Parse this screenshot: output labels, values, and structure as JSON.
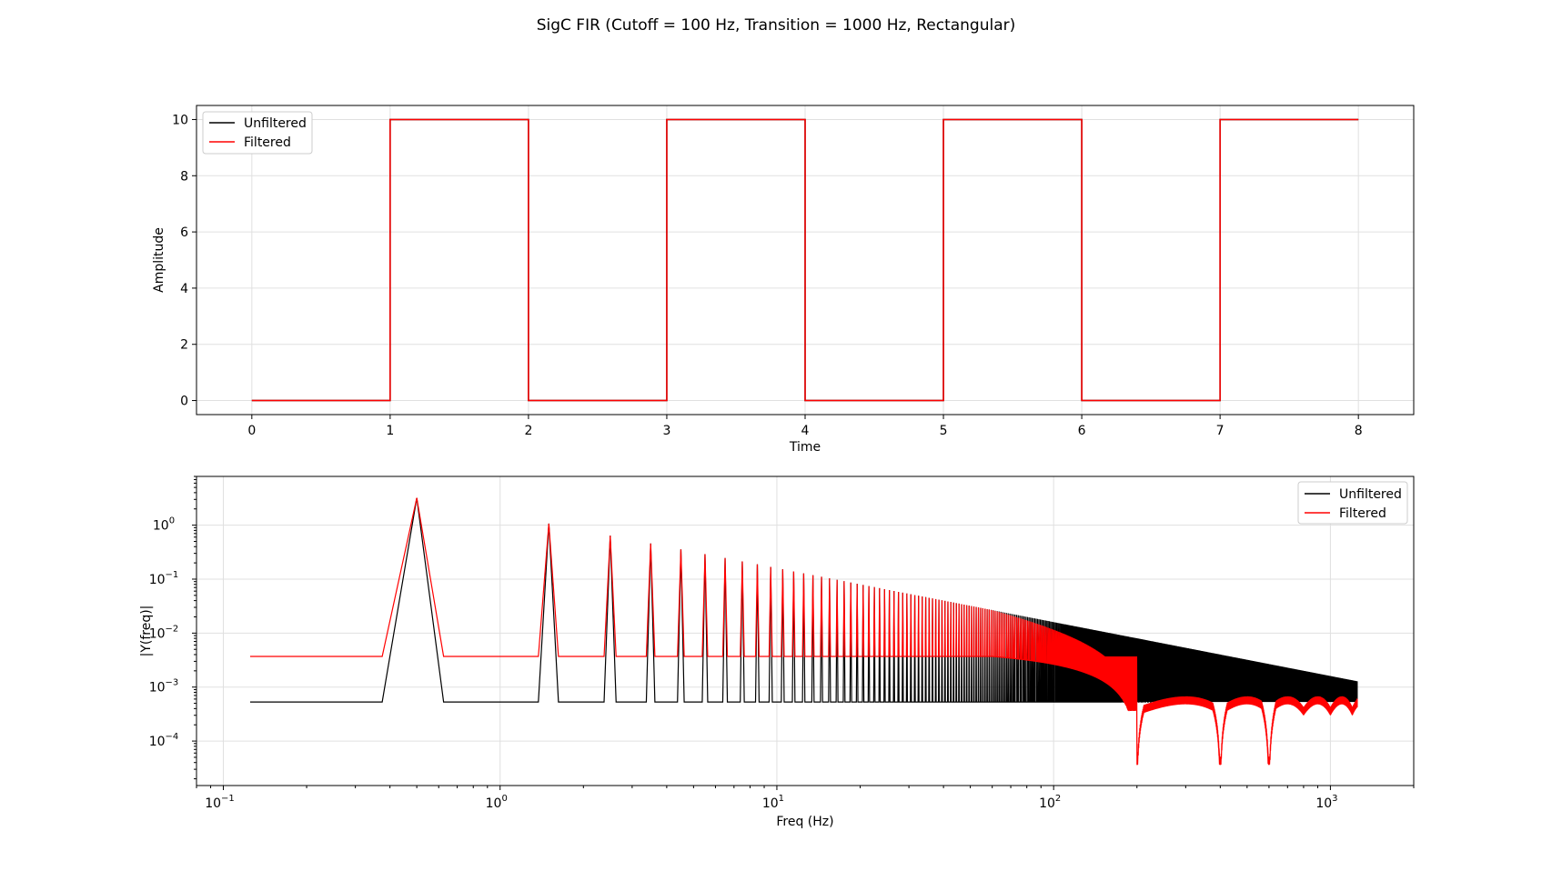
{
  "figure": {
    "title": "SigC FIR (Cutoff = 100 Hz, Transition = 1000 Hz, Rectangular)"
  },
  "colors": {
    "unfiltered": "#000000",
    "filtered": "#ff0000",
    "grid": "#e0e0e0",
    "axes": "#000000"
  },
  "chart_data": [
    {
      "type": "line",
      "xlabel": "Time",
      "ylabel": "Amplitude",
      "xlim": [
        -0.4,
        8.4
      ],
      "ylim": [
        -0.5,
        10.5
      ],
      "xticks": [
        "0",
        "1",
        "2",
        "3",
        "4",
        "5",
        "6",
        "7",
        "8"
      ],
      "yticks": [
        "0",
        "2",
        "4",
        "6",
        "8",
        "10"
      ],
      "grid": true,
      "legend_position": "upper left",
      "series": [
        {
          "name": "Unfiltered",
          "color": "#000000",
          "x": [
            0,
            1,
            1,
            2,
            2,
            3,
            3,
            4,
            4,
            5,
            5,
            6,
            6,
            7,
            7,
            8
          ],
          "y": [
            0,
            0,
            10,
            10,
            0,
            0,
            10,
            10,
            0,
            0,
            10,
            10,
            0,
            0,
            10,
            10
          ]
        },
        {
          "name": "Filtered",
          "color": "#ff0000",
          "x": [
            0,
            1,
            1,
            2,
            2,
            3,
            3,
            4,
            4,
            5,
            5,
            6,
            6,
            7,
            7,
            8
          ],
          "y": [
            0,
            0,
            10,
            10,
            0,
            0,
            10,
            10,
            0,
            0,
            10,
            10,
            0,
            0,
            10,
            10
          ]
        }
      ]
    },
    {
      "type": "line",
      "xlabel": "Freq (Hz)",
      "ylabel": "|Y(freq)|",
      "xscale": "log",
      "yscale": "log",
      "xlim": [
        0.08,
        2000
      ],
      "ylim": [
        1.5e-05,
        8
      ],
      "xticks": [
        {
          "base": "10",
          "exp": "−1"
        },
        {
          "base": "10",
          "exp": "0"
        },
        {
          "base": "10",
          "exp": "1"
        },
        {
          "base": "10",
          "exp": "2"
        },
        {
          "base": "10",
          "exp": "3"
        }
      ],
      "yticks": [
        {
          "base": "10",
          "exp": "−4"
        },
        {
          "base": "10",
          "exp": "−3"
        },
        {
          "base": "10",
          "exp": "−2"
        },
        {
          "base": "10",
          "exp": "−1"
        },
        {
          "base": "10",
          "exp": "0"
        }
      ],
      "grid": true,
      "legend_position": "upper right",
      "description": "Spectrum of square wave: odd harmonics at 0.5, 1.5, 2.5, ... Hz with peak amplitude ~3.2/(2k+1); floor ~5.3e-4 (unfiltered) and ~3.7e-3 (filtered); filtered rolls off above ~60 Hz with notches near 200 and 400 Hz.",
      "series": [
        {
          "name": "Unfiltered",
          "color": "#000000",
          "fundamental_hz": 0.5,
          "peak_at_fundamental": 3.2,
          "floor": 0.00053,
          "f_max": 1250
        },
        {
          "name": "Filtered",
          "color": "#ff0000",
          "fundamental_hz": 0.5,
          "peak_at_fundamental": 3.2,
          "floor": 0.0037,
          "rolloff_start_hz": 60,
          "notches_hz": [
            200,
            400,
            600
          ],
          "tail_level": 0.0003,
          "f_max": 1250
        }
      ]
    }
  ]
}
